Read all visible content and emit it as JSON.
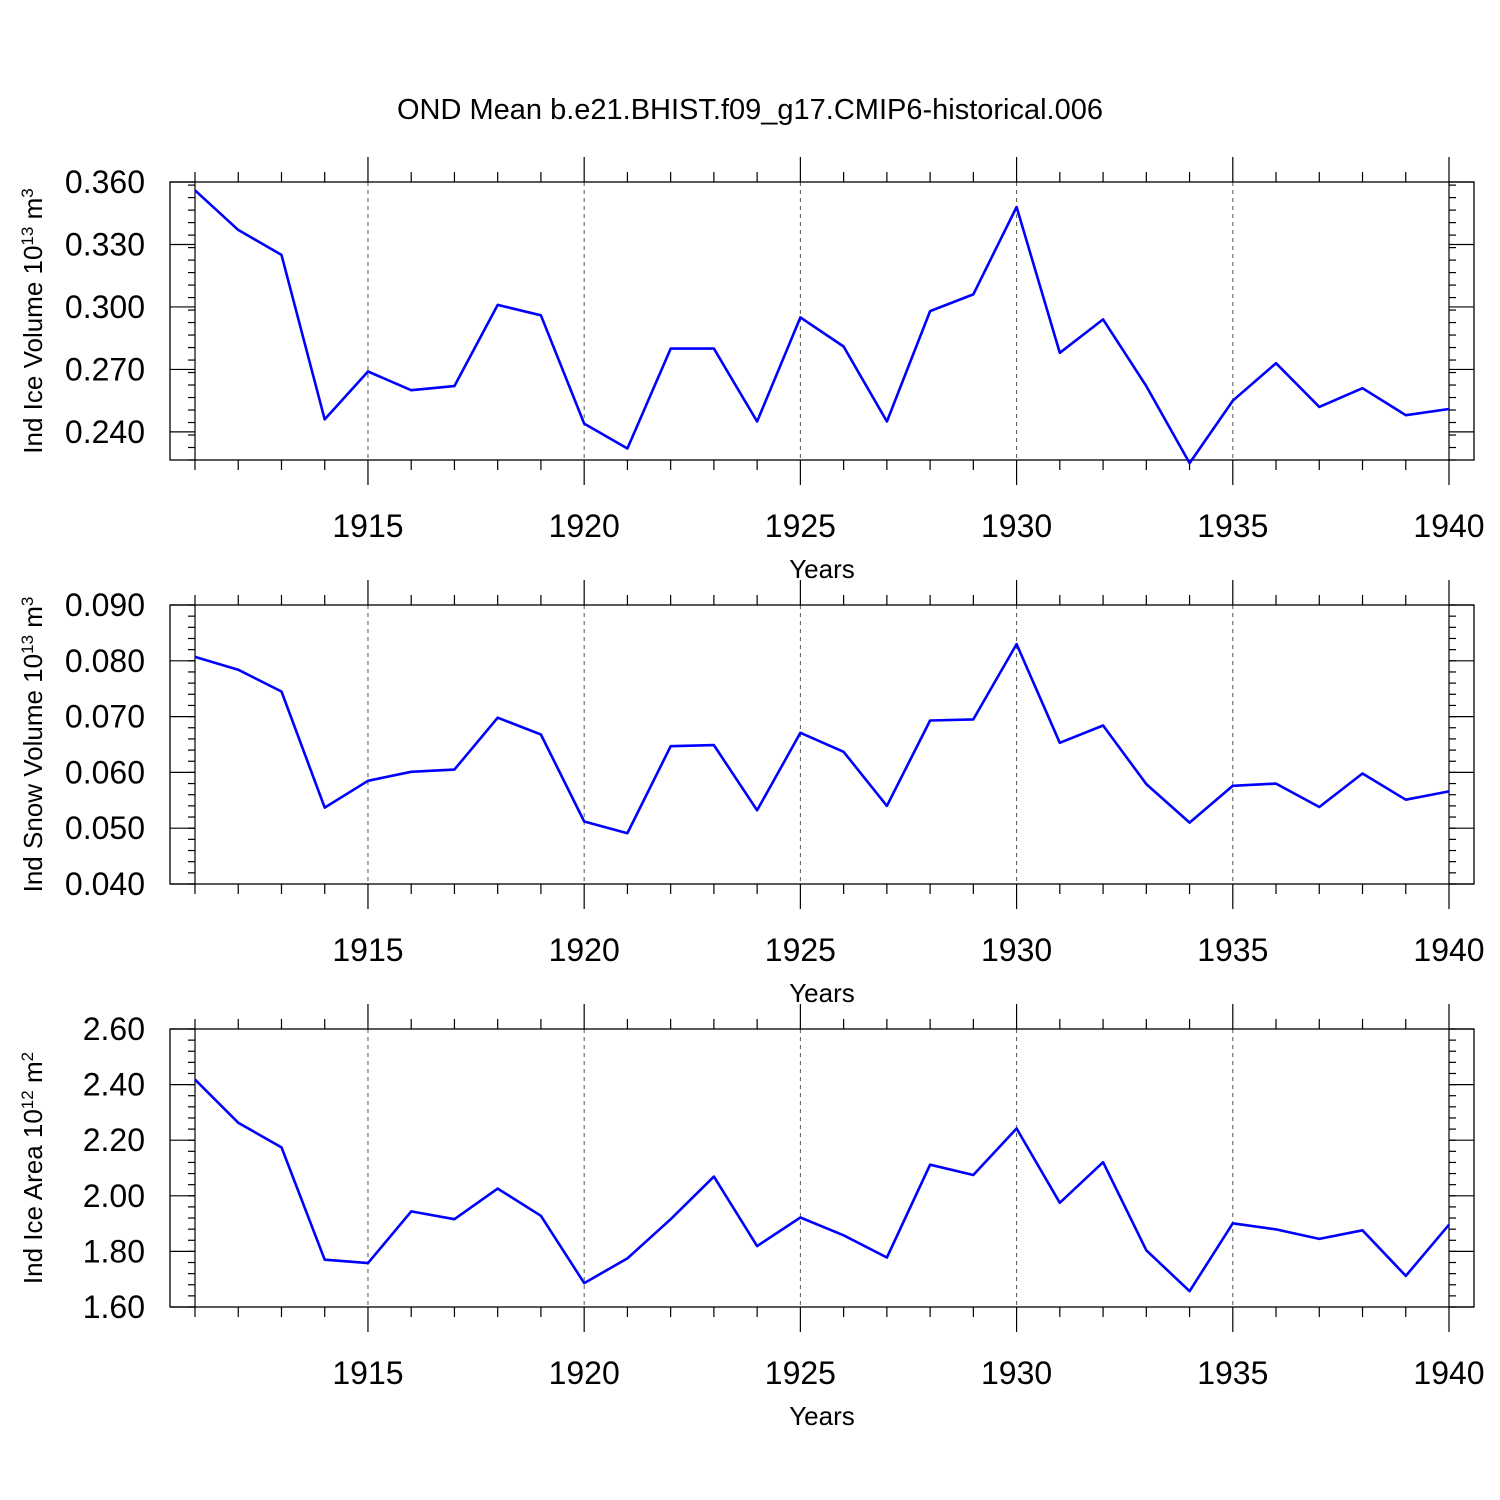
{
  "title": "OND Mean b.e21.BHIST.f09_g17.CMIP6-historical.006",
  "chart_data": [
    {
      "type": "line",
      "title": "OND Mean b.e21.BHIST.f09_g17.CMIP6-historical.006",
      "ylabel": "Ind Ice Volume",
      "ylabel_unit_base": "10",
      "ylabel_unit_exp": "13",
      "ylabel_unit": "m",
      "ylabel_unit_power": "3",
      "xlabel": "Years",
      "xlim": [
        1911,
        1940
      ],
      "ylim": [
        0.2265,
        0.36
      ],
      "yticks": [
        0.24,
        0.27,
        0.3,
        0.33,
        0.36
      ],
      "ytick_labels": [
        "0.240",
        "0.270",
        "0.300",
        "0.330",
        "0.360"
      ],
      "xticks": [
        1915,
        1920,
        1925,
        1930,
        1935,
        1940
      ],
      "xtick_labels": [
        "1915",
        "1920",
        "1925",
        "1930",
        "1935",
        "1940"
      ],
      "x": [
        1911,
        1912,
        1913,
        1914,
        1915,
        1916,
        1917,
        1918,
        1919,
        1920,
        1921,
        1922,
        1923,
        1924,
        1925,
        1926,
        1927,
        1928,
        1929,
        1930,
        1931,
        1932,
        1933,
        1934,
        1935,
        1936,
        1937,
        1938,
        1939,
        1940
      ],
      "values": [
        0.356,
        0.337,
        0.325,
        0.246,
        0.269,
        0.26,
        0.262,
        0.301,
        0.296,
        0.244,
        0.232,
        0.28,
        0.28,
        0.245,
        0.295,
        0.281,
        0.245,
        0.298,
        0.306,
        0.348,
        0.278,
        0.294,
        0.262,
        0.225,
        0.255,
        0.273,
        0.252,
        0.261,
        0.248,
        0.251
      ]
    },
    {
      "type": "line",
      "ylabel": "Ind Snow Volume",
      "ylabel_unit_base": "10",
      "ylabel_unit_exp": "13",
      "ylabel_unit": "m",
      "ylabel_unit_power": "3",
      "xlabel": "Years",
      "xlim": [
        1911,
        1940
      ],
      "ylim": [
        0.04,
        0.09
      ],
      "yticks": [
        0.04,
        0.05,
        0.06,
        0.07,
        0.08,
        0.09
      ],
      "ytick_labels": [
        "0.040",
        "0.050",
        "0.060",
        "0.070",
        "0.080",
        "0.090"
      ],
      "xticks": [
        1915,
        1920,
        1925,
        1930,
        1935,
        1940
      ],
      "xtick_labels": [
        "1915",
        "1920",
        "1925",
        "1930",
        "1935",
        "1940"
      ],
      "x": [
        1911,
        1912,
        1913,
        1914,
        1915,
        1916,
        1917,
        1918,
        1919,
        1920,
        1921,
        1922,
        1923,
        1924,
        1925,
        1926,
        1927,
        1928,
        1929,
        1930,
        1931,
        1932,
        1933,
        1934,
        1935,
        1936,
        1937,
        1938,
        1939,
        1940
      ],
      "values": [
        0.0807,
        0.0784,
        0.0745,
        0.0537,
        0.0585,
        0.0601,
        0.0605,
        0.0698,
        0.0668,
        0.0512,
        0.0491,
        0.0647,
        0.0649,
        0.0532,
        0.0671,
        0.0637,
        0.054,
        0.0693,
        0.0695,
        0.083,
        0.0653,
        0.0684,
        0.0579,
        0.051,
        0.0576,
        0.058,
        0.0538,
        0.0598,
        0.0551,
        0.0566
      ]
    },
    {
      "type": "line",
      "ylabel": "Ind Ice Area",
      "ylabel_unit_base": "10",
      "ylabel_unit_exp": "12",
      "ylabel_unit": "m",
      "ylabel_unit_power": "2",
      "xlabel": "Years",
      "xlim": [
        1911,
        1940
      ],
      "ylim": [
        1.6,
        2.6
      ],
      "yticks": [
        1.6,
        1.8,
        2.0,
        2.2,
        2.4,
        2.6
      ],
      "ytick_labels": [
        "1.60",
        "1.80",
        "2.00",
        "2.20",
        "2.40",
        "2.60"
      ],
      "xticks": [
        1915,
        1920,
        1925,
        1930,
        1935,
        1940
      ],
      "xtick_labels": [
        "1915",
        "1920",
        "1925",
        "1930",
        "1935",
        "1940"
      ],
      "x": [
        1911,
        1912,
        1913,
        1914,
        1915,
        1916,
        1917,
        1918,
        1919,
        1920,
        1921,
        1922,
        1923,
        1924,
        1925,
        1926,
        1927,
        1928,
        1929,
        1930,
        1931,
        1932,
        1933,
        1934,
        1935,
        1936,
        1937,
        1938,
        1939,
        1940
      ],
      "values": [
        2.418,
        2.263,
        2.174,
        1.77,
        1.758,
        1.944,
        1.916,
        2.026,
        1.928,
        1.686,
        1.775,
        1.916,
        2.069,
        1.819,
        1.922,
        1.858,
        1.778,
        2.112,
        2.075,
        2.242,
        1.975,
        2.121,
        1.804,
        1.657,
        1.901,
        1.879,
        1.845,
        1.876,
        1.712,
        1.896
      ]
    }
  ]
}
